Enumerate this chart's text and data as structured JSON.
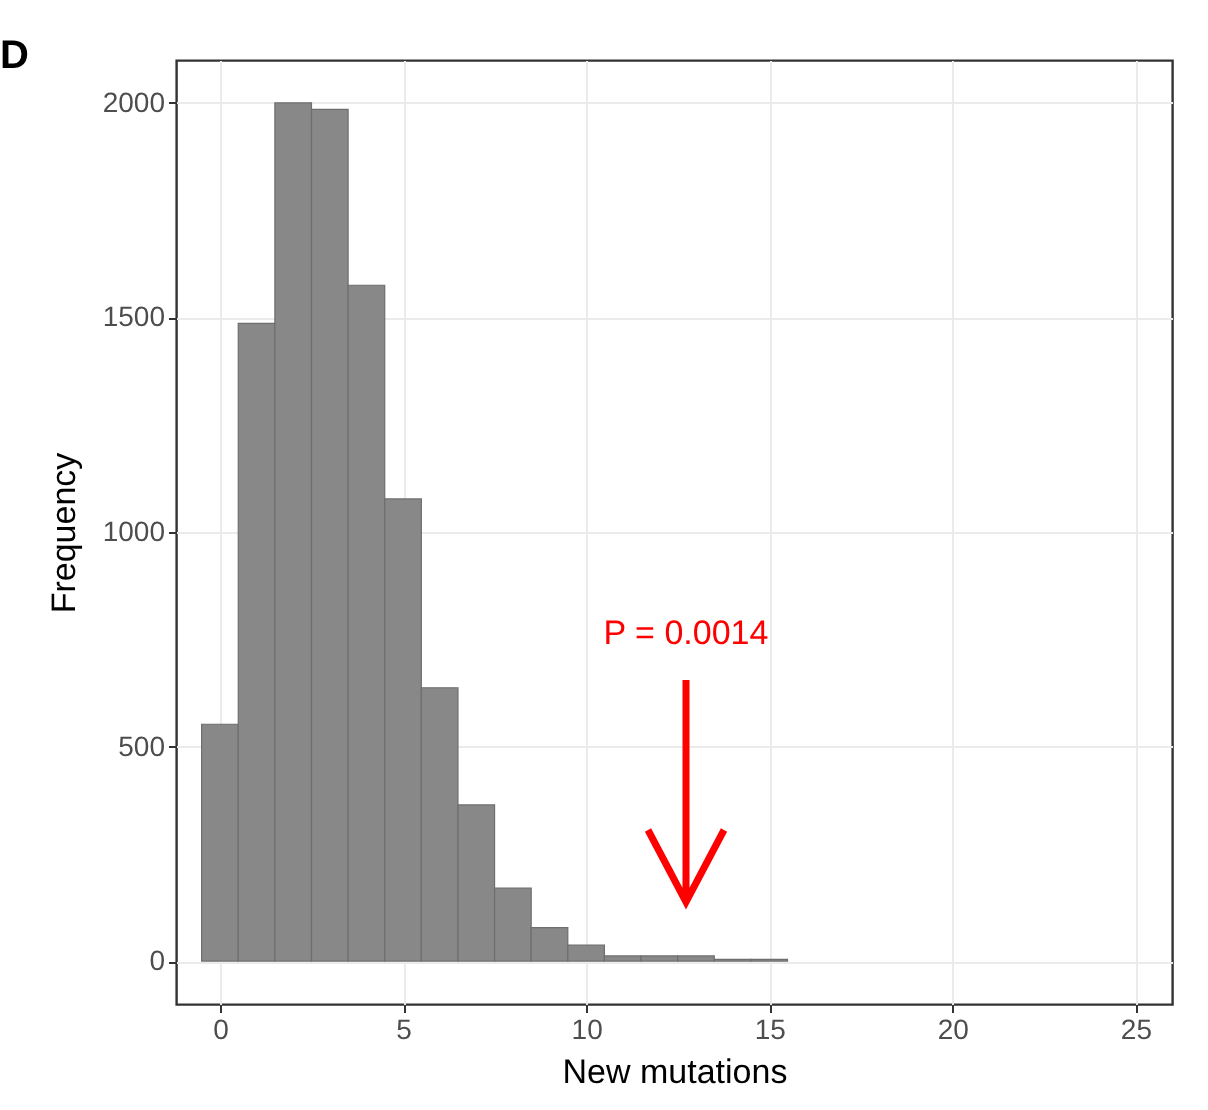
{
  "chart_data": {
    "type": "histogram",
    "title": "D",
    "xlabel": "New mutations",
    "ylabel": "Frequency",
    "bins": [
      -0.5,
      0.5,
      1.5,
      2.5,
      3.5,
      4.5,
      5.5,
      6.5,
      7.5,
      8.5,
      9.5,
      10.5,
      11.5,
      12.5,
      13.5,
      14.5,
      15.5
    ],
    "values": [
      552,
      1486,
      2000,
      1985,
      1575,
      1077,
      637,
      364,
      170,
      78,
      37,
      12,
      12,
      12,
      4,
      4
    ],
    "color": "#888888",
    "xlim": [
      -1.2,
      26
    ],
    "xticks": [
      0,
      5,
      10,
      15,
      20,
      25
    ],
    "ylim": [
      -100,
      2100
    ],
    "yticks": [
      0,
      500,
      1000,
      1500,
      2000
    ],
    "grid": true,
    "annotations": [
      "P = 0.0014"
    ]
  }
}
